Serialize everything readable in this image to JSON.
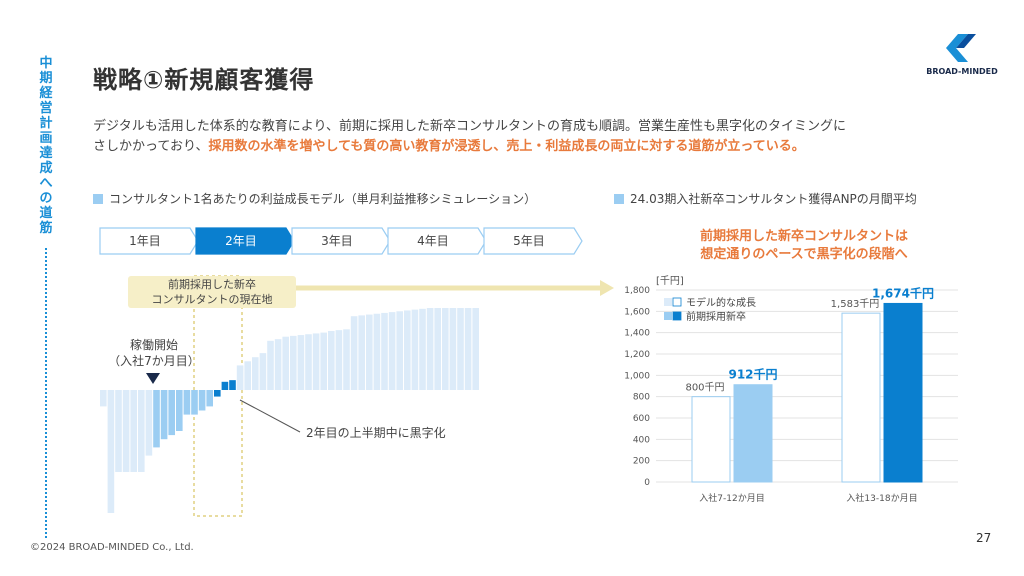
{
  "side_label": "中期経営計画達成への道筋",
  "title": "戦略①新規顧客獲得",
  "brand": "BROAD-MINDED",
  "description": {
    "line1": "デジタルも活用した体系的な教育により、前期に採用した新卒コンサルタントの育成も順調。営業生産性も黒字化のタイミングに",
    "line2_plain": "さしかかっており、",
    "line2_highlight": "採用数の水準を増やしても質の高い教育が浸透し、売上・利益成長の両立に対する道筋が立っている。"
  },
  "left_heading": "コンサルタント1名あたりの利益成長モデル（単月利益推移シミュレーション）",
  "right_heading": "24.03期入社新卒コンサルタント獲得ANPの月間平均",
  "years": [
    "1年目",
    "2年目",
    "3年目",
    "4年目",
    "5年目"
  ],
  "current_label_1": "前期採用した新卒",
  "current_label_2": "コンサルタントの現在地",
  "start_label_1": "稼働開始",
  "start_label_2": "（入社7か月目）",
  "profit_label": "2年目の上半期中に黒字化",
  "right_callout_1": "前期採用した新卒コンサルタントは",
  "right_callout_2": "想定通りのペースで黒字化の段階へ",
  "copyright": "©2024 BROAD-MINDED Co., Ltd.",
  "page_number": "27",
  "colors": {
    "accent_orange": "#e87a3c",
    "blue_dark": "#0a7fcf",
    "blue_light": "#9bcdf2",
    "blue_pale": "#dcebf9"
  },
  "chart_data": [
    {
      "type": "bar",
      "values": [
        -0.2,
        -1.5,
        -1,
        -1,
        -1,
        -1,
        -0.8,
        -0.7,
        -0.6,
        -0.55,
        -0.5,
        -0.3,
        -0.3,
        -0.25,
        -0.2,
        -0.08,
        0.1,
        0.12,
        0.3,
        0.35,
        0.4,
        0.45,
        0.6,
        0.62,
        0.65,
        0.66,
        0.67,
        0.68,
        0.69,
        0.7,
        0.72,
        0.73,
        0.74,
        0.9,
        0.91,
        0.92,
        0.93,
        0.94,
        0.95,
        0.96,
        0.97,
        0.98,
        0.99,
        1.0,
        1.0,
        1.0,
        1.0,
        1.0,
        1.0,
        1.0
      ],
      "highlight_start": 7,
      "highlight_end": 18
    },
    {
      "type": "bar",
      "title": "",
      "ylabel": "[千円]",
      "ylim": [
        0,
        1800
      ],
      "yticks": [
        "0",
        "200",
        "400",
        "600",
        "800",
        "1,000",
        "1,200",
        "1,400",
        "1,600",
        "1,800"
      ],
      "categories": [
        "入社7-12か月目",
        "入社13-18か月目"
      ],
      "series": [
        {
          "name": "モデル的な成長",
          "values": [
            800,
            1583
          ],
          "labels": [
            "800千円",
            "1,583千円"
          ]
        },
        {
          "name": "前期採用新卒",
          "values": [
            912,
            1674
          ],
          "labels": [
            "912千円",
            "1,674千円"
          ]
        }
      ]
    }
  ]
}
